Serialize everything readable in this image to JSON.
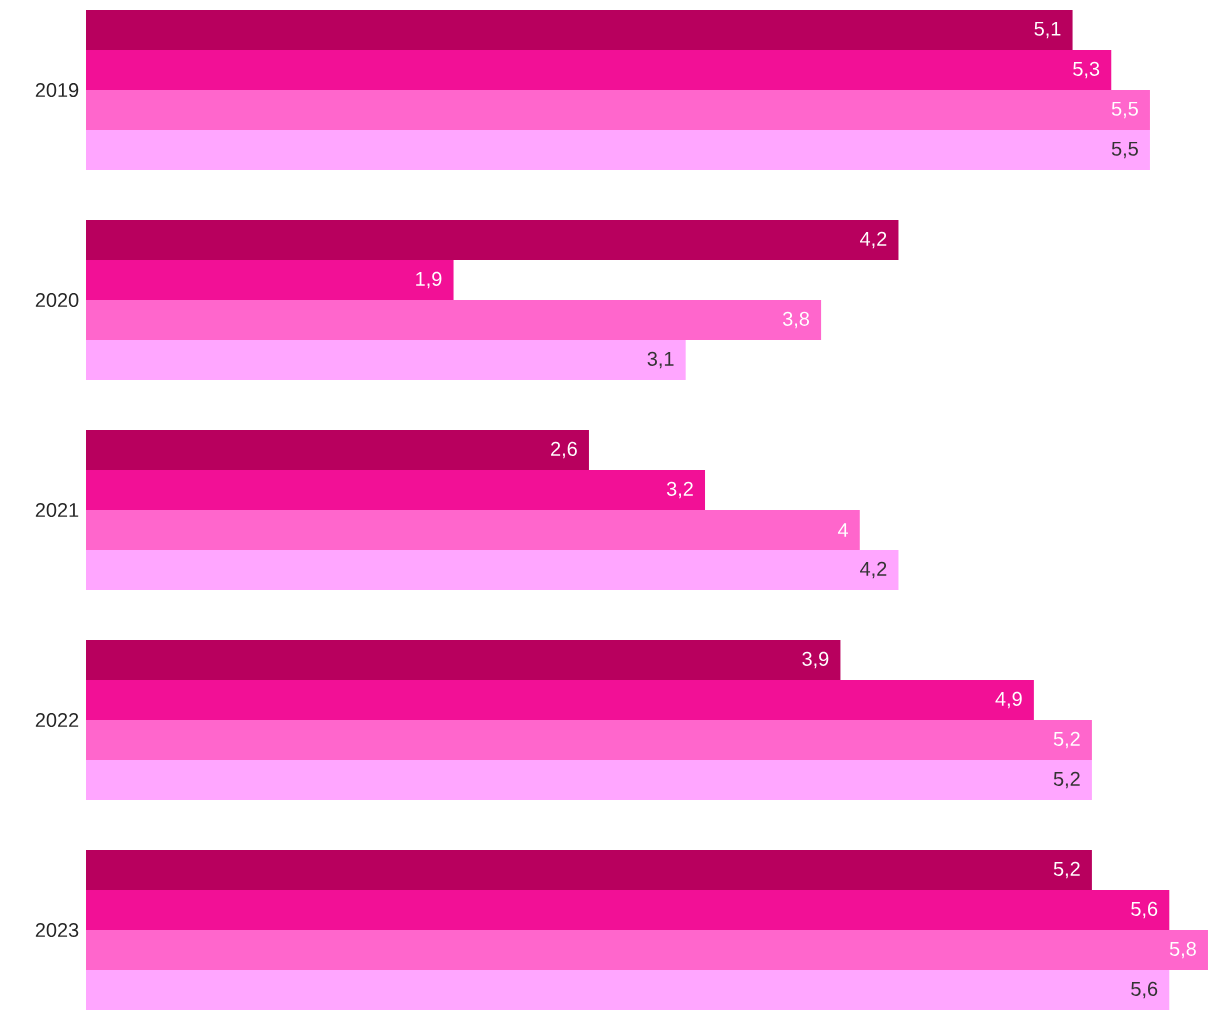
{
  "chart_data": {
    "type": "bar",
    "orientation": "horizontal",
    "categories": [
      "2019",
      "2020",
      "2021",
      "2022",
      "2023"
    ],
    "series": [
      {
        "color": "#b8005e",
        "values": [
          5.1,
          4.2,
          2.6,
          3.9,
          5.2
        ],
        "value_labels": [
          "5,1",
          "4,2",
          "2,6",
          "3,9",
          "5,2"
        ]
      },
      {
        "color": "#f21096",
        "values": [
          5.3,
          1.9,
          3.2,
          4.9,
          5.6
        ],
        "value_labels": [
          "5,3",
          "1,9",
          "3,2",
          "4,9",
          "5,6"
        ]
      },
      {
        "color": "#ff66cc",
        "values": [
          5.5,
          3.8,
          4,
          5.2,
          5.8
        ],
        "value_labels": [
          "5,5",
          "3,8",
          "4",
          "5,2",
          "5,8"
        ]
      },
      {
        "color": "#ffa6ff",
        "values": [
          5.5,
          3.1,
          4.2,
          5.2,
          5.6
        ],
        "value_labels": [
          "5,5",
          "3,1",
          "4,2",
          "5,2",
          "5,6"
        ]
      }
    ]
  }
}
